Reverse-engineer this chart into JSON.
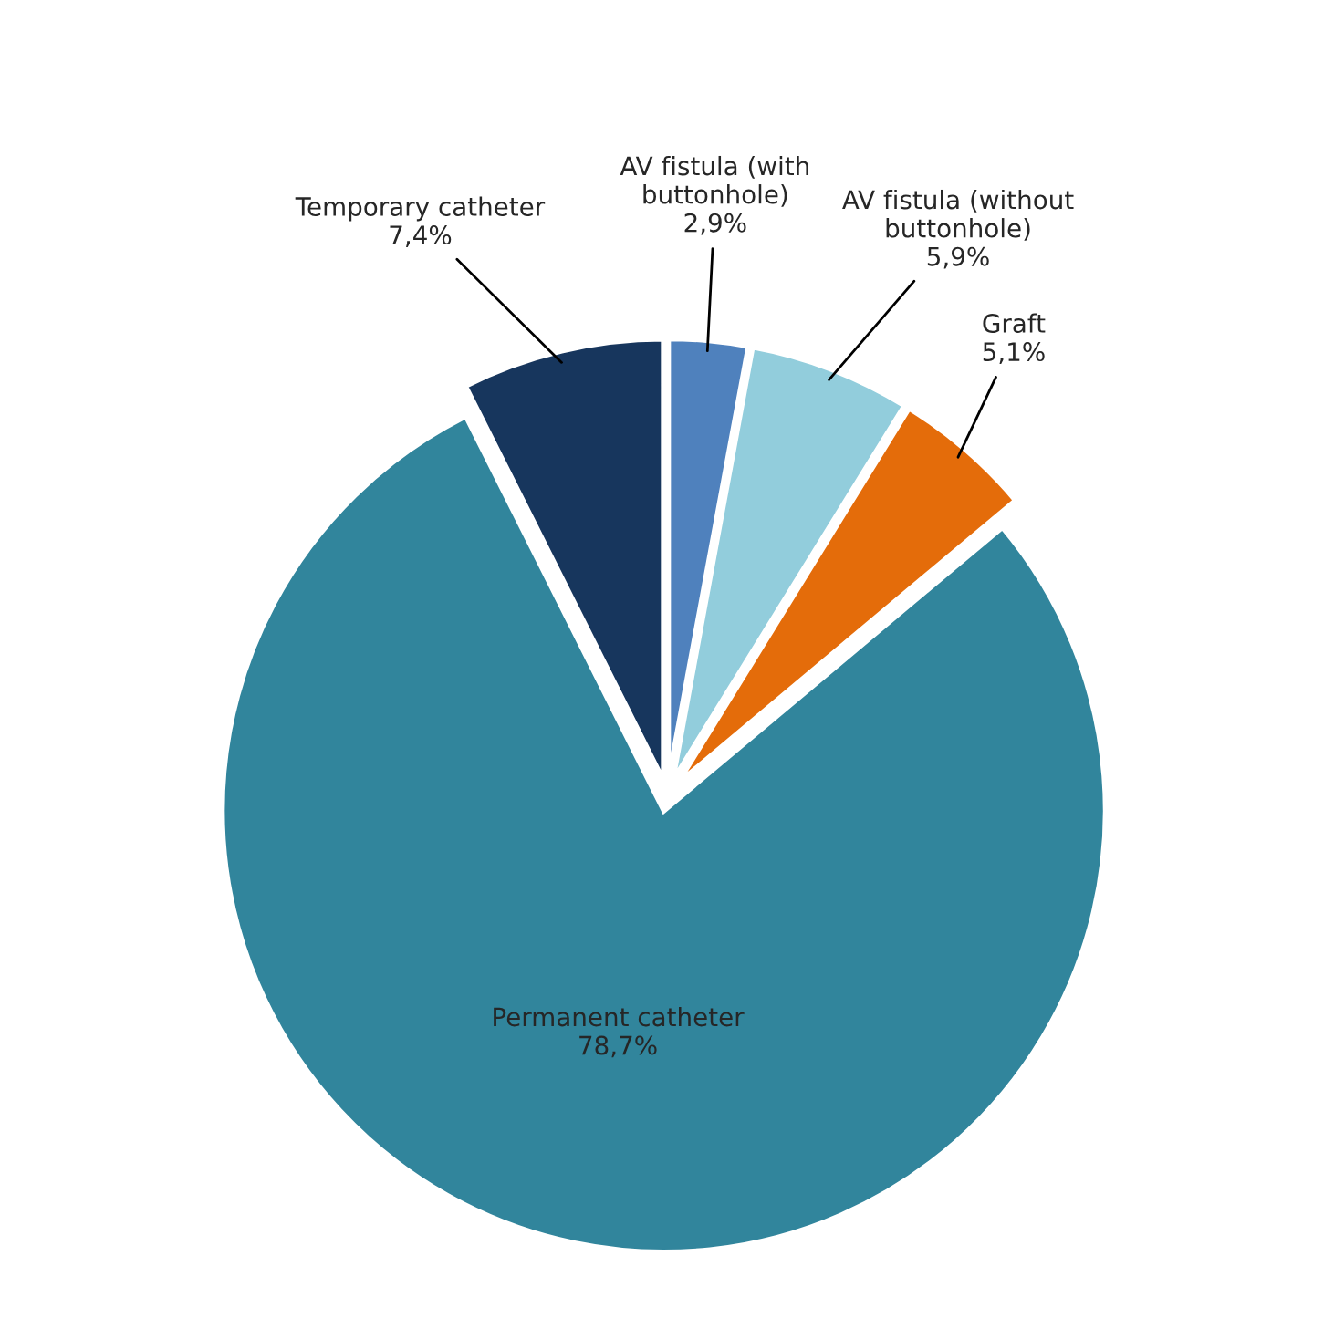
{
  "chart_data": {
    "type": "pie",
    "categories": [
      "AV fistula (with\nbuttonhole)",
      "AV fistula (without\nbuttonhole)",
      "Graft",
      "Permanent catheter",
      "Temporary catheter"
    ],
    "values": [
      2.9,
      5.9,
      5.1,
      78.7,
      7.4
    ],
    "value_labels": [
      "2,9%",
      "5,9%",
      "5,1%",
      "78,7%",
      "7,4%"
    ],
    "colors": [
      "#4f81bd",
      "#92cddc",
      "#e46c0a",
      "#31859c",
      "#17365d"
    ]
  }
}
